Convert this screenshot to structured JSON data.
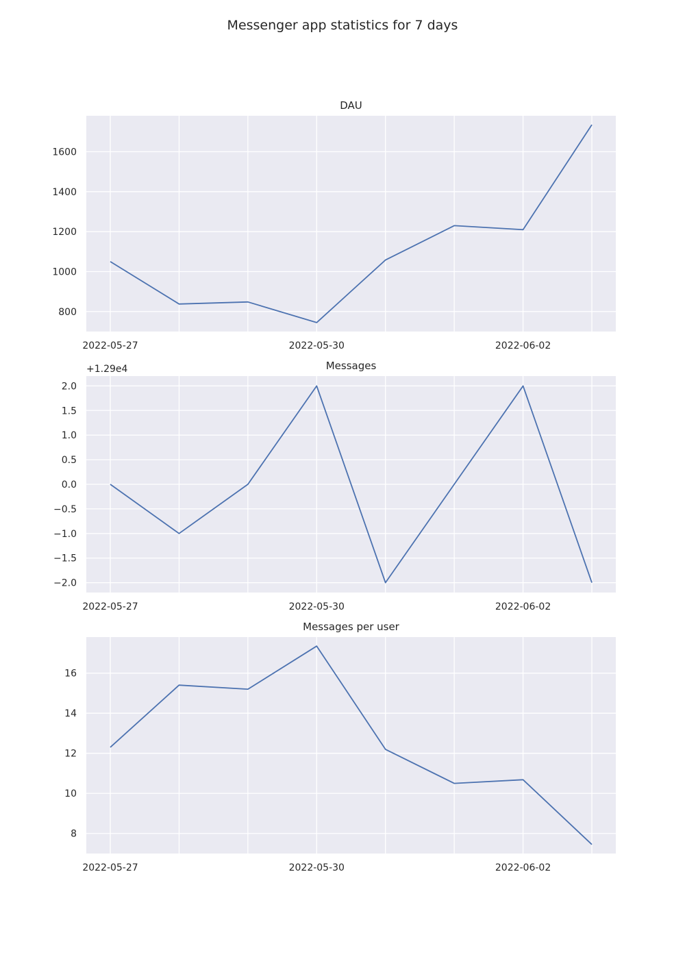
{
  "figure": {
    "title": "Messenger app statistics for 7 days"
  },
  "chart_data": [
    {
      "type": "line",
      "title": "DAU",
      "xlabel": "",
      "ylabel": "",
      "x": [
        "2022-05-27",
        "2022-05-28",
        "2022-05-29",
        "2022-05-30",
        "2022-05-31",
        "2022-06-01",
        "2022-06-02",
        "2022-06-03"
      ],
      "y": [
        1050,
        838,
        848,
        745,
        1058,
        1230,
        1210,
        1735
      ],
      "xticks": [
        "2022-05-27",
        "2022-05-30",
        "2022-06-02"
      ],
      "yticks": [
        800,
        1000,
        1200,
        1400,
        1600
      ],
      "ylim": [
        700,
        1780
      ],
      "grid": true,
      "color": "#4c72b0"
    },
    {
      "type": "line",
      "title": "Messages",
      "xlabel": "",
      "ylabel": "",
      "offset_text": "+1.29e4",
      "x": [
        "2022-05-27",
        "2022-05-28",
        "2022-05-29",
        "2022-05-30",
        "2022-05-31",
        "2022-06-01",
        "2022-06-02",
        "2022-06-03"
      ],
      "y": [
        12900,
        12899,
        12900,
        12902,
        12898,
        12900,
        12902,
        12898
      ],
      "xticks": [
        "2022-05-27",
        "2022-05-30",
        "2022-06-02"
      ],
      "yticks": [
        2.0,
        1.5,
        1.0,
        0.5,
        0.0,
        -0.5,
        -1.0,
        -1.5,
        -2.0
      ],
      "ytick_labels": [
        "2.0",
        "1.5",
        "1.0",
        "0.5",
        "0.0",
        "−0.5",
        "−1.0",
        "−1.5",
        "−2.0"
      ],
      "ylim": [
        12897.8,
        12902.2
      ],
      "grid": true,
      "color": "#4c72b0"
    },
    {
      "type": "line",
      "title": "Messages per user",
      "xlabel": "",
      "ylabel": "",
      "x": [
        "2022-05-27",
        "2022-05-28",
        "2022-05-29",
        "2022-05-30",
        "2022-05-31",
        "2022-06-01",
        "2022-06-02",
        "2022-06-03"
      ],
      "y": [
        12.3,
        15.4,
        15.2,
        17.35,
        12.2,
        10.5,
        10.68,
        7.45
      ],
      "xticks": [
        "2022-05-27",
        "2022-05-30",
        "2022-06-02"
      ],
      "yticks": [
        8,
        10,
        12,
        14,
        16
      ],
      "ylim": [
        7.0,
        17.8
      ],
      "grid": true,
      "color": "#4c72b0"
    }
  ]
}
